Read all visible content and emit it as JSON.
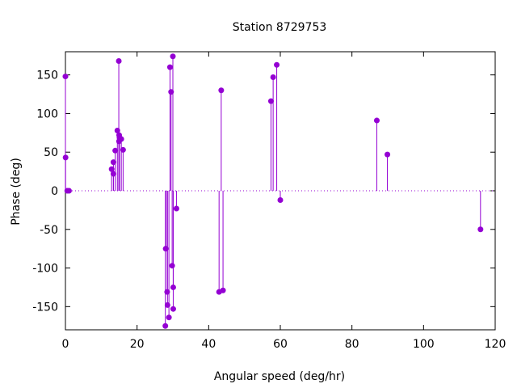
{
  "chart_data": {
    "type": "scatter",
    "style": "impulse-stem",
    "title": "Station 8729753",
    "xlabel": "Angular speed (deg/hr)",
    "ylabel": "Phase (deg)",
    "xlim": [
      0,
      120
    ],
    "ylim": [
      -180,
      180
    ],
    "xticks": [
      0,
      20,
      40,
      60,
      80,
      100,
      120
    ],
    "yticks": [
      -150,
      -100,
      -50,
      0,
      50,
      100,
      150
    ],
    "zero_line": true,
    "grid": false,
    "color": "#9400d3",
    "points": [
      {
        "x": 0.0,
        "y": 148
      },
      {
        "x": 0.04,
        "y": 43
      },
      {
        "x": 0.5,
        "y": 0
      },
      {
        "x": 1.0,
        "y": 0
      },
      {
        "x": 12.9,
        "y": 28
      },
      {
        "x": 13.4,
        "y": 22
      },
      {
        "x": 13.4,
        "y": 37
      },
      {
        "x": 13.9,
        "y": 52
      },
      {
        "x": 14.5,
        "y": 78
      },
      {
        "x": 14.9,
        "y": 168
      },
      {
        "x": 14.96,
        "y": 64
      },
      {
        "x": 15.0,
        "y": 72
      },
      {
        "x": 15.1,
        "y": 69
      },
      {
        "x": 15.6,
        "y": 67
      },
      {
        "x": 16.1,
        "y": 53
      },
      {
        "x": 27.9,
        "y": -175
      },
      {
        "x": 28.0,
        "y": -75
      },
      {
        "x": 28.4,
        "y": -131
      },
      {
        "x": 28.5,
        "y": -148
      },
      {
        "x": 28.9,
        "y": -164
      },
      {
        "x": 29.2,
        "y": 160
      },
      {
        "x": 29.5,
        "y": 128
      },
      {
        "x": 29.8,
        "y": -97
      },
      {
        "x": 30.0,
        "y": 174
      },
      {
        "x": 30.1,
        "y": -125
      },
      {
        "x": 30.1,
        "y": -153
      },
      {
        "x": 31.0,
        "y": -23
      },
      {
        "x": 42.9,
        "y": -131
      },
      {
        "x": 43.5,
        "y": 130
      },
      {
        "x": 44.0,
        "y": -129
      },
      {
        "x": 57.4,
        "y": 116
      },
      {
        "x": 58.0,
        "y": 147
      },
      {
        "x": 59.0,
        "y": 163
      },
      {
        "x": 60.0,
        "y": -12
      },
      {
        "x": 86.95,
        "y": 91
      },
      {
        "x": 89.9,
        "y": 47
      },
      {
        "x": 115.9,
        "y": -50
      }
    ]
  }
}
